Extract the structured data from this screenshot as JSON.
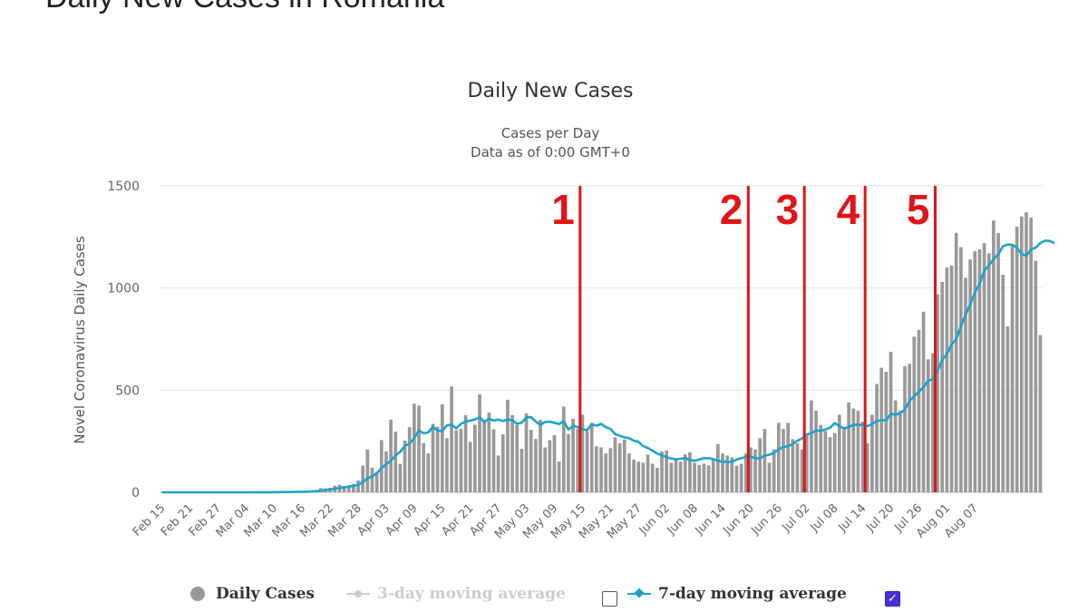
{
  "page": {
    "heading": "Daily New Cases in Romania"
  },
  "chart_data": {
    "type": "bar",
    "title": "Daily New Cases",
    "subtitle_lines": [
      "Cases per Day",
      "Data as of 0:00 GMT+0"
    ],
    "xlabel": "",
    "ylabel": "Novel Coronavirus Daily Cases",
    "ylim": [
      0,
      1500
    ],
    "yticks": [
      0,
      500,
      1000,
      1500
    ],
    "xticks": [
      "Feb 15",
      "Feb 21",
      "Feb 27",
      "Mar 04",
      "Mar 10",
      "Mar 16",
      "Mar 22",
      "Mar 28",
      "Apr 03",
      "Apr 09",
      "Apr 15",
      "Apr 21",
      "Apr 27",
      "May 03",
      "May 09",
      "May 15",
      "May 21",
      "May 27",
      "Jun 02",
      "Jun 08",
      "Jun 14",
      "Jun 20",
      "Jun 26",
      "Jul 02",
      "Jul 08",
      "Jul 14",
      "Jul 20",
      "Jul 26",
      "Aug 01",
      "Aug 07"
    ],
    "tick_interval_days": 6,
    "series": [
      {
        "name": "Daily Cases",
        "color": "#999999",
        "values": [
          0,
          0,
          0,
          0,
          0,
          0,
          0,
          0,
          0,
          0,
          0,
          0,
          0,
          0,
          0,
          0,
          0,
          0,
          1,
          0,
          1,
          0,
          1,
          1,
          2,
          2,
          2,
          1,
          3,
          4,
          5,
          5,
          7,
          10,
          21,
          20,
          22,
          32,
          37,
          31,
          34,
          41,
          58,
          131,
          210,
          120,
          100,
          256,
          200,
          356,
          297,
          139,
          253,
          319,
          434,
          424,
          241,
          190,
          335,
          321,
          430,
          265,
          518,
          304,
          311,
          378,
          247,
          331,
          479,
          354,
          390,
          309,
          180,
          284,
          453,
          378,
          329,
          213,
          387,
          305,
          261,
          355,
          220,
          255,
          280,
          150,
          420,
          285,
          360,
          310,
          380,
          300,
          340,
          225,
          220,
          190,
          216,
          270,
          240,
          258,
          190,
          160,
          150,
          145,
          185,
          140,
          120,
          200,
          205,
          145,
          158,
          150,
          186,
          196,
          145,
          134,
          140,
          132,
          160,
          236,
          190,
          180,
          172,
          130,
          140,
          190,
          220,
          210,
          265,
          310,
          145,
          210,
          340,
          310,
          340,
          260,
          240,
          210,
          280,
          450,
          400,
          330,
          300,
          270,
          290,
          380,
          320,
          440,
          410,
          400,
          346,
          240,
          380,
          530,
          610,
          590,
          688,
          450,
          400,
          617,
          629,
          762,
          795,
          884,
          651,
          680,
          970,
          1030,
          1100,
          1110,
          1270,
          1200,
          1050,
          1140,
          1180,
          1190,
          1220,
          1170,
          1330,
          1270,
          1065,
          812,
          1210,
          1300,
          1350,
          1370,
          1345,
          1134,
          770
        ]
      },
      {
        "name": "3-day moving average",
        "color": "#cccccc",
        "visible": false,
        "values": []
      },
      {
        "name": "7-day moving average",
        "color": "#1ea3c9",
        "visible": true,
        "values": [
          0,
          0,
          0,
          0,
          0,
          0,
          0,
          0,
          0,
          0,
          0,
          0,
          0,
          0,
          0,
          0,
          0,
          0,
          0.1,
          0.1,
          0.3,
          0.3,
          0.4,
          0.4,
          0.7,
          1,
          1.3,
          1.3,
          1.9,
          2.1,
          2.6,
          3.2,
          4.1,
          5.3,
          7.9,
          10.6,
          13.6,
          17.3,
          21.4,
          24.4,
          28,
          32.6,
          36.5,
          50,
          68,
          78,
          93,
          118,
          137,
          154,
          181,
          198,
          228,
          238,
          265,
          303,
          289,
          293,
          320,
          302,
          299,
          328,
          331,
          313,
          335,
          346,
          351,
          357,
          367,
          345,
          361,
          351,
          356,
          349,
          357,
          353,
          335,
          341,
          367,
          368,
          347,
          330,
          344,
          346,
          340,
          334,
          348,
          307,
          325,
          319,
          309,
          305,
          333,
          326,
          335,
          319,
          310,
          285,
          277,
          269,
          265,
          253,
          247,
          226,
          217,
          204,
          190,
          181,
          172,
          165,
          161,
          164,
          168,
          158,
          155,
          160,
          167,
          167,
          163,
          155,
          149,
          148,
          150,
          160,
          167,
          173,
          175,
          167,
          167,
          179,
          184,
          193,
          209,
          223,
          225,
          237,
          252,
          264,
          283,
          289,
          302,
          301,
          308,
          316,
          339,
          323,
          313,
          319,
          330,
          330,
          331,
          324,
          335,
          349,
          353,
          353,
          384,
          380,
          387,
          405,
          447,
          471,
          492,
          515,
          545,
          555,
          592,
          649,
          677,
          724,
          749,
          813,
          869,
          920,
          978,
          1021,
          1085,
          1110,
          1142,
          1164,
          1204,
          1213,
          1212,
          1197,
          1167,
          1158,
          1188,
          1198,
          1220,
          1232,
          1230,
          1220
        ]
      }
    ],
    "annotations": [
      {
        "label": "1",
        "day": 90
      },
      {
        "label": "2",
        "day": 126
      },
      {
        "label": "3",
        "day": 138
      },
      {
        "label": "4",
        "day": 151
      },
      {
        "label": "5",
        "day": 166
      }
    ],
    "annotation_color": "#e0141a",
    "legend_position": "bottom",
    "legend": {
      "items": [
        {
          "label": "Daily Cases"
        },
        {
          "label": "3-day moving average",
          "checked": false
        },
        {
          "label": "7-day moving average",
          "checked": true
        }
      ],
      "check_mark": "✓"
    }
  }
}
